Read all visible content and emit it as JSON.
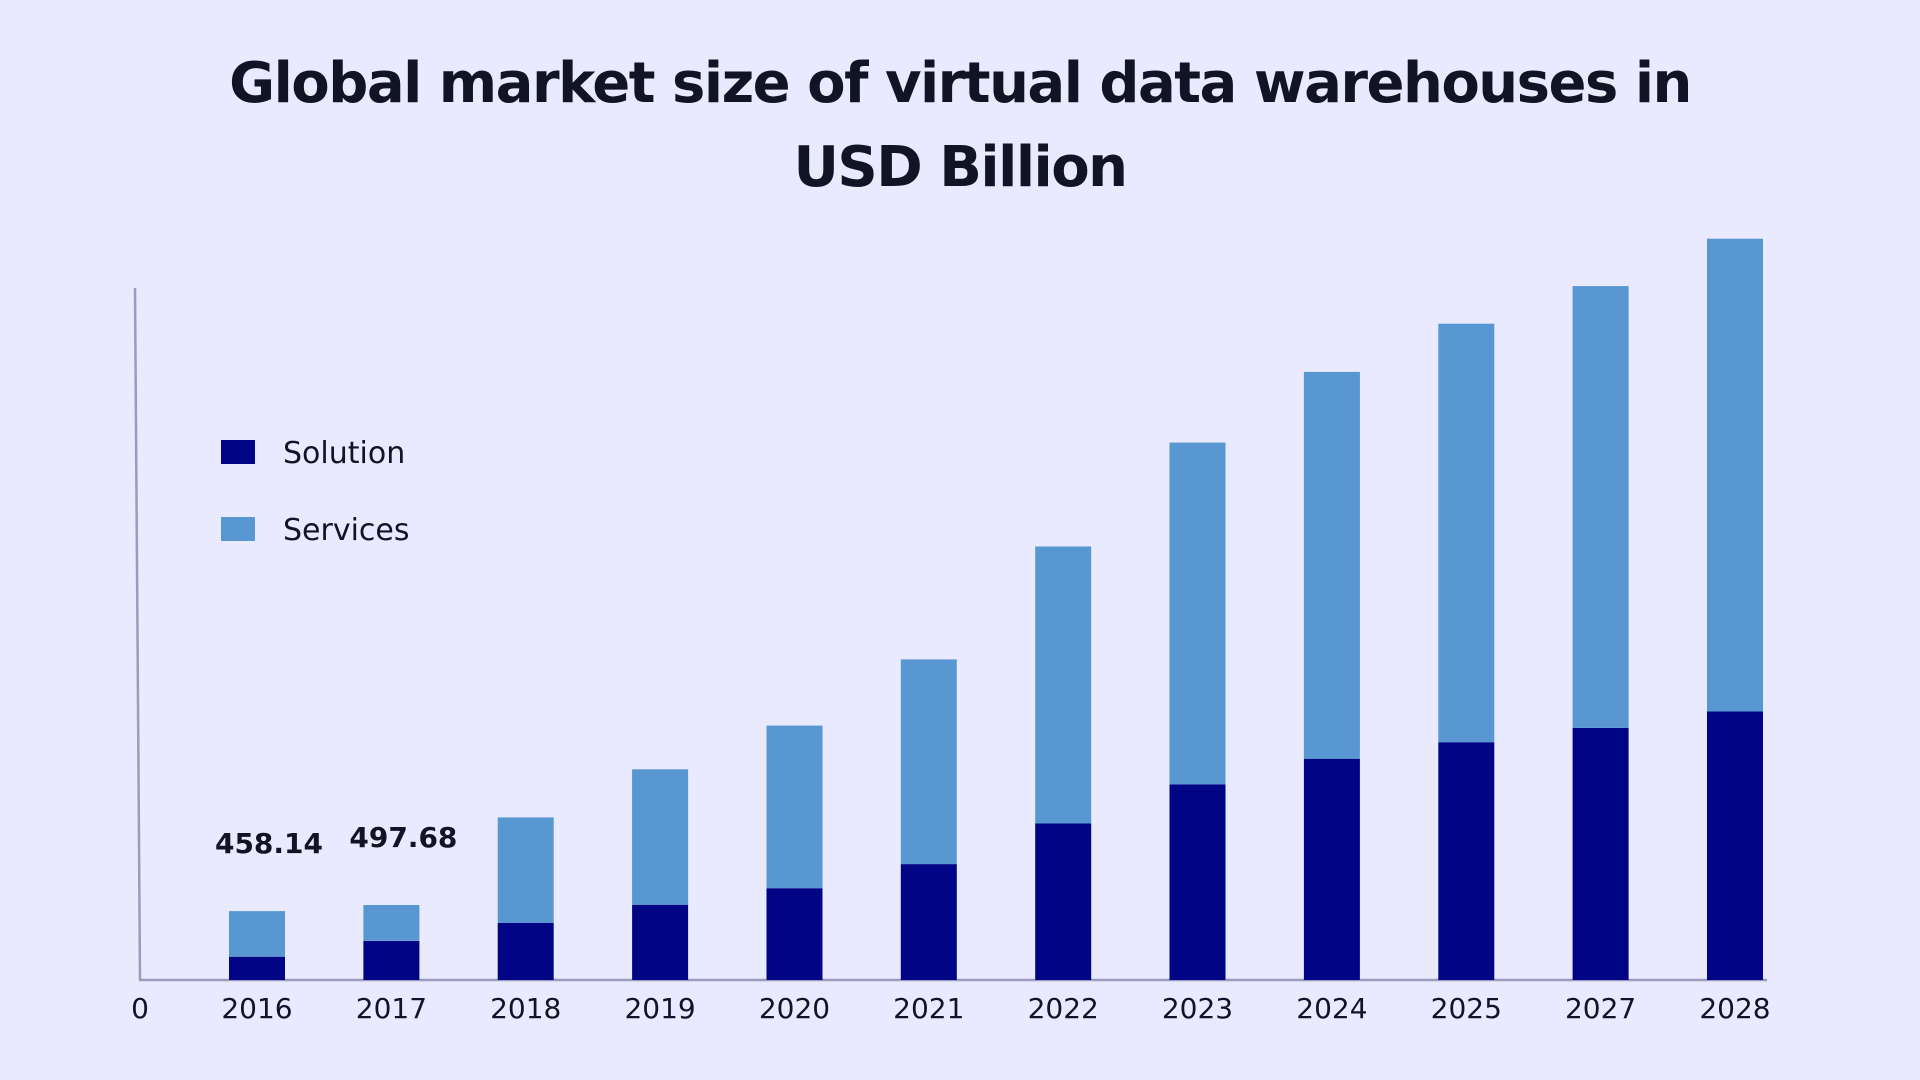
{
  "chart_data": {
    "type": "bar",
    "stacked": true,
    "title": "Global market size of virtual data warehouses in USD Billion",
    "title_lines": [
      "Global market size of virtual data warehouses in",
      "USD Billion"
    ],
    "xlabel": "",
    "ylabel": "",
    "y_origin_label": "0",
    "ylim": [
      0,
      4750
    ],
    "grid": false,
    "legend_placement": "top-left",
    "categories": [
      "2016",
      "2017",
      "2018",
      "2019",
      "2020",
      "2021",
      "2022",
      "2023",
      "2024",
      "2025",
      "2027",
      "2028"
    ],
    "series": [
      {
        "name": "Solution",
        "color": "#010585",
        "values": [
          155,
          260,
          380,
          500,
          610,
          770,
          1040,
          1300,
          1470,
          1580,
          1675,
          1785
        ]
      },
      {
        "name": "Services",
        "color": "#5897d1",
        "values": [
          303,
          238,
          700,
          900,
          1080,
          1360,
          1840,
          2270,
          2570,
          2780,
          2935,
          3140
        ]
      }
    ],
    "data_labels": [
      {
        "category": "2016",
        "text": "458.14"
      },
      {
        "category": "2017",
        "text": "497.68"
      }
    ]
  }
}
